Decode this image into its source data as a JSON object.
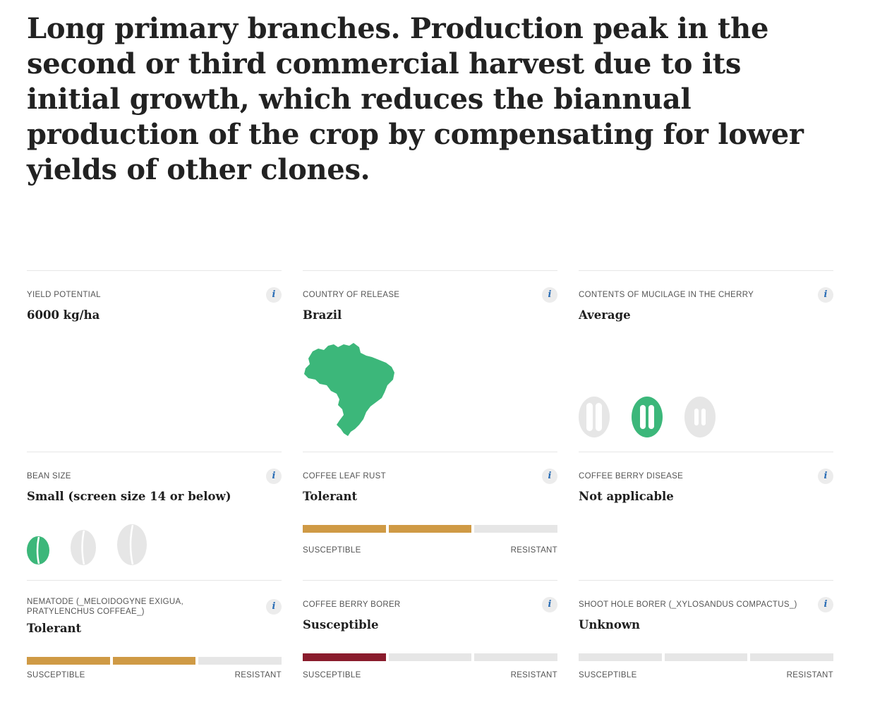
{
  "intro": "Long primary branches. Production peak in the second or third commercial harvest due to its initial growth, which reduces the biannual production of the crop by compensating for lower yields of other clones.",
  "info_glyph": "i",
  "scale": {
    "low": "SUSCEPTIBLE",
    "high": "RESISTANT"
  },
  "colors": {
    "accent": "#3cb77a",
    "tolerant": "#cf9a45",
    "susceptible": "#8a1c2d",
    "empty": "#e6e6e6"
  },
  "cells": {
    "yield": {
      "label": "YIELD POTENTIAL",
      "value": "6000 kg/ha"
    },
    "country": {
      "label": "COUNTRY OF RELEASE",
      "value": "Brazil",
      "icon": "brazil-map-icon"
    },
    "mucilage": {
      "label": "CONTENTS OF MUCILAGE IN THE CHERRY",
      "value": "Average",
      "options": 3,
      "selected_index": 1
    },
    "bean_size": {
      "label": "BEAN SIZE",
      "value": "Small (screen size 14 or below)",
      "options": 3,
      "selected_index": 0
    },
    "leaf_rust": {
      "label": "COFFEE LEAF RUST",
      "value": "Tolerant",
      "level": 2,
      "max": 3
    },
    "berry_disease": {
      "label": "COFFEE BERRY DISEASE",
      "value": "Not applicable"
    },
    "nematode": {
      "label": "NEMATODE (_MELOIDOGYNE EXIGUA, PRATYLENCHUS COFFEAE_)",
      "value": "Tolerant",
      "level": 2,
      "max": 3
    },
    "berry_borer": {
      "label": "COFFEE BERRY BORER",
      "value": "Susceptible",
      "level": 1,
      "max": 3
    },
    "shoot_hole": {
      "label": "SHOOT HOLE BORER (_XYLOSANDUS COMPACTUS_)",
      "value": "Unknown",
      "level": 0,
      "max": 3
    }
  }
}
